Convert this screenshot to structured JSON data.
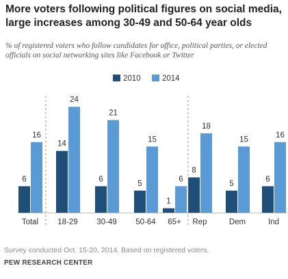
{
  "title": "More voters following political figures on social media, large increases among 30-49 and 50-64 year olds",
  "subtitle": "% of registered voters who follow candidates for office, political parties, or elected officials on social networking sites like Facebook or Twitter",
  "footnote": "Survey conducted Oct. 15-20, 2014. Based on registered voters.",
  "source": "PEW RESEARCH CENTER",
  "colors": {
    "series_2010": "#1f4e79",
    "series_2014": "#5b9bd5",
    "separator": "#a89a7a"
  },
  "chart_data": {
    "type": "bar",
    "categories": [
      "Total",
      "18-29",
      "30-49",
      "50-64",
      "65+",
      "Rep",
      "Dem",
      "Ind"
    ],
    "series": [
      {
        "name": "2010",
        "values": [
          6,
          14,
          6,
          5,
          1,
          8,
          5,
          6
        ]
      },
      {
        "name": "2014",
        "values": [
          16,
          24,
          21,
          15,
          6,
          18,
          15,
          16
        ]
      }
    ],
    "title": "More voters following political figures on social media, large increases among 30-49 and 50-64 year olds",
    "subtitle": "% of registered voters who follow candidates for office, political parties, or elected officials on social networking sites like Facebook or Twitter",
    "xlabel": "",
    "ylabel": "",
    "grid": false,
    "legend": "top-center",
    "group_separators_after": [
      "Total",
      "65+"
    ]
  }
}
